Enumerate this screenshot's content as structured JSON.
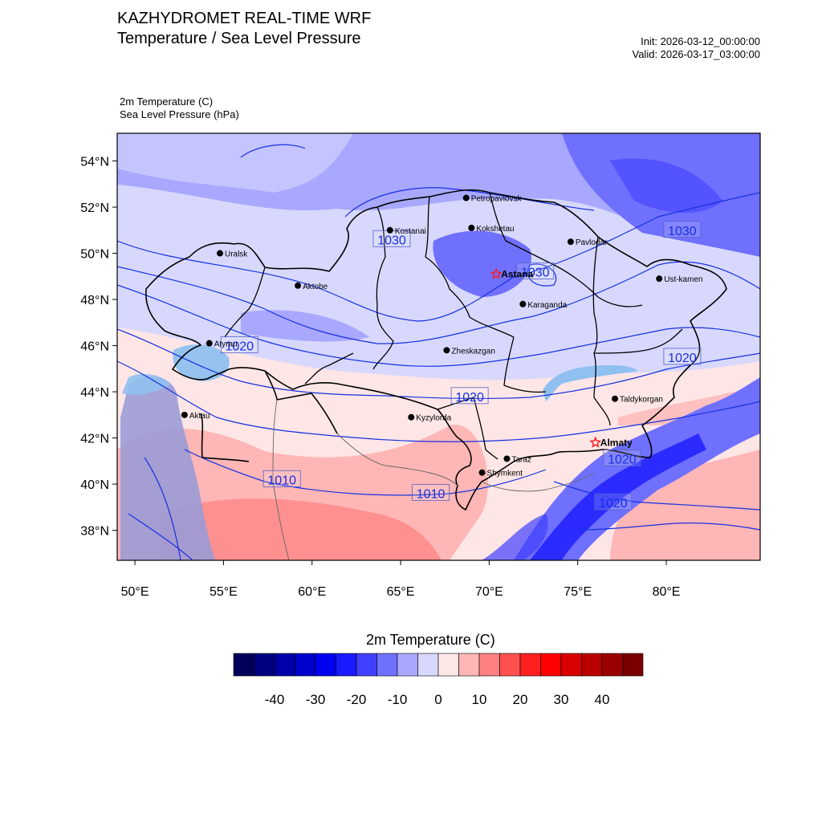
{
  "header": {
    "title_line1": "KAZHYDROMET REAL-TIME WRF",
    "title_line2": "Temperature / Sea Level Pressure",
    "init": "Init: 2026-03-12_00:00:00",
    "valid": "Valid: 2026-03-17_03:00:00",
    "var_temperature": "2m Temperature   (C)",
    "var_pressure": "Sea Level Pressure   (hPa)"
  },
  "map": {
    "lon_range": [
      49,
      85.3
    ],
    "lat_range": [
      36.7,
      55.2
    ],
    "lat_ticks": [
      {
        "value": 38,
        "label": "38°N"
      },
      {
        "value": 40,
        "label": "40°N"
      },
      {
        "value": 42,
        "label": "42°N"
      },
      {
        "value": 44,
        "label": "44°N"
      },
      {
        "value": 46,
        "label": "46°N"
      },
      {
        "value": 48,
        "label": "48°N"
      },
      {
        "value": 50,
        "label": "50°N"
      },
      {
        "value": 52,
        "label": "52°N"
      },
      {
        "value": 54,
        "label": "54°N"
      }
    ],
    "lon_ticks": [
      {
        "value": 50,
        "label": "50°E"
      },
      {
        "value": 55,
        "label": "55°E"
      },
      {
        "value": 60,
        "label": "60°E"
      },
      {
        "value": 65,
        "label": "65°E"
      },
      {
        "value": 70,
        "label": "70°E"
      },
      {
        "value": 75,
        "label": "75°E"
      },
      {
        "value": 80,
        "label": "80°E"
      }
    ],
    "cities": [
      {
        "name": "Petropavlovsk",
        "lon": 68.7,
        "lat": 52.4,
        "marker": "dot"
      },
      {
        "name": "Kostanai",
        "lon": 64.4,
        "lat": 51.0,
        "marker": "dot"
      },
      {
        "name": "Kokshetau",
        "lon": 69.0,
        "lat": 51.1,
        "marker": "dot"
      },
      {
        "name": "Pavlodar",
        "lon": 74.6,
        "lat": 50.5,
        "marker": "dot"
      },
      {
        "name": "Uralsk",
        "lon": 54.8,
        "lat": 50.0,
        "marker": "dot"
      },
      {
        "name": "Astana",
        "lon": 70.4,
        "lat": 49.1,
        "marker": "star",
        "bold": true
      },
      {
        "name": "Ust-kamen",
        "lon": 79.6,
        "lat": 48.9,
        "marker": "dot"
      },
      {
        "name": "Aktobe",
        "lon": 59.2,
        "lat": 48.6,
        "marker": "dot"
      },
      {
        "name": "Karaganda",
        "lon": 71.9,
        "lat": 47.8,
        "marker": "dot"
      },
      {
        "name": "Atyrau",
        "lon": 54.2,
        "lat": 46.1,
        "marker": "dot"
      },
      {
        "name": "Zheskazgan",
        "lon": 67.6,
        "lat": 45.8,
        "marker": "dot"
      },
      {
        "name": "Taldykorgan",
        "lon": 77.1,
        "lat": 43.7,
        "marker": "dot"
      },
      {
        "name": "Aktau",
        "lon": 52.8,
        "lat": 43.0,
        "marker": "dot"
      },
      {
        "name": "Kyzylorda",
        "lon": 65.6,
        "lat": 42.9,
        "marker": "dot"
      },
      {
        "name": "Almaty",
        "lon": 76.0,
        "lat": 41.8,
        "marker": "star",
        "bold": true
      },
      {
        "name": "Taraz",
        "lon": 71.0,
        "lat": 41.1,
        "marker": "dot"
      },
      {
        "name": "Shymkent",
        "lon": 69.6,
        "lat": 40.5,
        "marker": "dot"
      }
    ],
    "pressure_labels": [
      {
        "text": "1030",
        "lon": 64.5,
        "lat": 50.6
      },
      {
        "text": "1030",
        "lon": 72.6,
        "lat": 49.2
      },
      {
        "text": "1030",
        "lon": 80.9,
        "lat": 51.0
      },
      {
        "text": "1020",
        "lon": 55.9,
        "lat": 46.0
      },
      {
        "text": "1020",
        "lon": 68.9,
        "lat": 43.8
      },
      {
        "text": "1020",
        "lon": 80.9,
        "lat": 45.5
      },
      {
        "text": "1020",
        "lon": 77.5,
        "lat": 41.1
      },
      {
        "text": "1020",
        "lon": 77.0,
        "lat": 39.2
      },
      {
        "text": "1010",
        "lon": 58.3,
        "lat": 40.2
      },
      {
        "text": "1010",
        "lon": 66.7,
        "lat": 39.6
      }
    ]
  },
  "colorbar": {
    "title": "2m Temperature  (C)",
    "colors": [
      "#00005a",
      "#000080",
      "#0000a8",
      "#0000cd",
      "#0000f0",
      "#1a1aff",
      "#4040ff",
      "#7070ff",
      "#a8a8ff",
      "#d8d8ff",
      "#ffe6e6",
      "#ffb6b6",
      "#ff8080",
      "#ff5050",
      "#ff2020",
      "#ff0000",
      "#d80000",
      "#b80000",
      "#9a0000",
      "#7a0000"
    ],
    "tick_labels": [
      "-40",
      "-30",
      "-20",
      "-10",
      "0",
      "10",
      "20",
      "30",
      "40"
    ]
  },
  "colors": {
    "contour": "#1530e0",
    "label_text": "#1530e0",
    "star": "#ff1a1a"
  }
}
